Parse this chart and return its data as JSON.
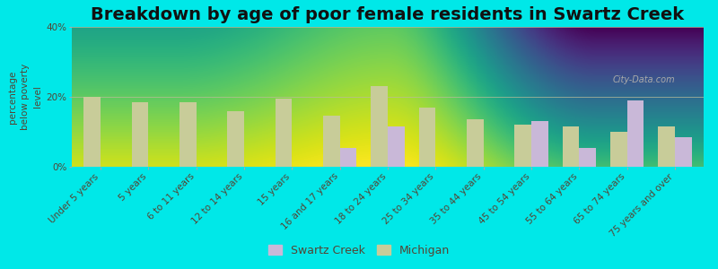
{
  "title": "Breakdown by age of poor female residents in Swartz Creek",
  "ylabel": "percentage\nbelow poverty\nlevel",
  "categories": [
    "Under 5 years",
    "5 years",
    "6 to 11 years",
    "12 to 14 years",
    "15 years",
    "16 and 17 years",
    "18 to 24 years",
    "25 to 34 years",
    "35 to 44 years",
    "45 to 54 years",
    "55 to 64 years",
    "65 to 74 years",
    "75 years and over"
  ],
  "swartz_creek": [
    0,
    0,
    0,
    0,
    0,
    5.5,
    11.5,
    0,
    0,
    13.0,
    5.5,
    19.0,
    8.5
  ],
  "michigan": [
    20.0,
    18.5,
    18.5,
    16.0,
    19.5,
    14.5,
    23.0,
    17.0,
    13.5,
    12.0,
    11.5,
    10.0,
    11.5
  ],
  "swartz_color": "#c9b8d8",
  "michigan_color": "#c8cc99",
  "background_top": "#d8e4b0",
  "background_bottom": "#f0f5e0",
  "outer_bg": "#00e8e8",
  "ylim": [
    0,
    40
  ],
  "yticks": [
    0,
    20,
    40
  ],
  "ytick_labels": [
    "0%",
    "20%",
    "40%"
  ],
  "title_fontsize": 14,
  "ylabel_fontsize": 7.5,
  "tick_fontsize": 7.5,
  "legend_fontsize": 9,
  "bar_width": 0.35
}
